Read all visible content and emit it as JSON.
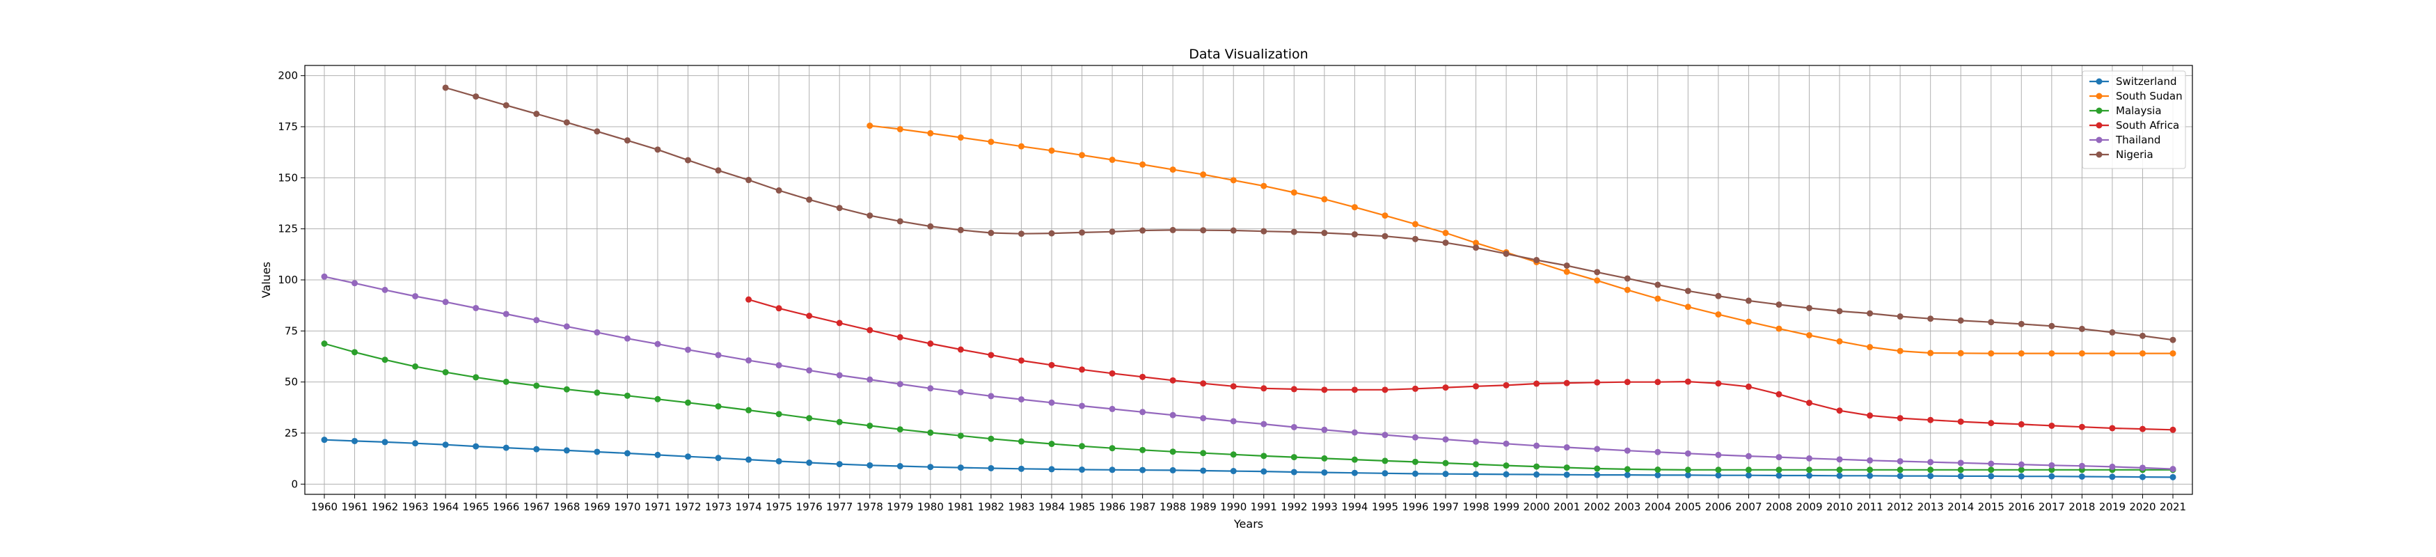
{
  "chart_data": {
    "type": "line",
    "title": "Data Visualization",
    "xlabel": "Years",
    "ylabel": "Values",
    "ylim": [
      -5,
      205
    ],
    "yticks": [
      0,
      25,
      50,
      75,
      100,
      125,
      150,
      175,
      200
    ],
    "grid": true,
    "legend_position": "top-right",
    "x": [
      1960,
      1961,
      1962,
      1963,
      1964,
      1965,
      1966,
      1967,
      1968,
      1969,
      1970,
      1971,
      1972,
      1973,
      1974,
      1975,
      1976,
      1977,
      1978,
      1979,
      1980,
      1981,
      1982,
      1983,
      1984,
      1985,
      1986,
      1987,
      1988,
      1989,
      1990,
      1991,
      1992,
      1993,
      1994,
      1995,
      1996,
      1997,
      1998,
      1999,
      2000,
      2001,
      2002,
      2003,
      2004,
      2005,
      2006,
      2007,
      2008,
      2009,
      2010,
      2011,
      2012,
      2013,
      2014,
      2015,
      2016,
      2017,
      2018,
      2019,
      2020,
      2021
    ],
    "series": [
      {
        "name": "Switzerland",
        "color": "#1f77b4",
        "values": [
          21.7,
          21.1,
          20.6,
          20.0,
          19.3,
          18.5,
          17.8,
          17.1,
          16.5,
          15.8,
          15.1,
          14.3,
          13.5,
          12.8,
          12.0,
          11.2,
          10.5,
          9.8,
          9.2,
          8.8,
          8.4,
          8.1,
          7.8,
          7.5,
          7.3,
          7.1,
          7.0,
          6.9,
          6.8,
          6.6,
          6.4,
          6.2,
          5.9,
          5.7,
          5.5,
          5.3,
          5.1,
          5.0,
          4.9,
          4.8,
          4.7,
          4.6,
          4.5,
          4.5,
          4.4,
          4.4,
          4.3,
          4.3,
          4.2,
          4.2,
          4.1,
          4.1,
          4.0,
          4.0,
          3.9,
          3.9,
          3.8,
          3.8,
          3.7,
          3.6,
          3.5,
          3.4
        ]
      },
      {
        "name": "South Sudan",
        "color": "#ff7f0e",
        "values": [
          null,
          null,
          null,
          null,
          null,
          null,
          null,
          null,
          null,
          null,
          null,
          null,
          null,
          null,
          null,
          null,
          null,
          null,
          175.5,
          173.8,
          171.8,
          169.7,
          167.6,
          165.4,
          163.3,
          161.1,
          158.8,
          156.5,
          154.0,
          151.6,
          148.8,
          146.0,
          142.8,
          139.5,
          135.6,
          131.5,
          127.3,
          123.0,
          118.1,
          113.5,
          108.7,
          104.0,
          99.7,
          95.1,
          90.8,
          86.8,
          83.1,
          79.5,
          76.1,
          72.9,
          69.9,
          67.1,
          65.2,
          64.2,
          64.1,
          64.0,
          64.0,
          64.0,
          64.0,
          64.0,
          64.0,
          64.0
        ]
      },
      {
        "name": "Malaysia",
        "color": "#2ca02c",
        "values": [
          68.8,
          64.6,
          60.9,
          57.6,
          54.8,
          52.3,
          50.1,
          48.2,
          46.4,
          44.8,
          43.3,
          41.6,
          39.9,
          38.1,
          36.2,
          34.3,
          32.3,
          30.4,
          28.6,
          26.8,
          25.2,
          23.7,
          22.2,
          20.9,
          19.7,
          18.6,
          17.6,
          16.7,
          15.9,
          15.2,
          14.5,
          13.8,
          13.2,
          12.6,
          12.0,
          11.4,
          10.9,
          10.3,
          9.7,
          9.1,
          8.6,
          8.1,
          7.6,
          7.3,
          7.1,
          7.0,
          7.0,
          7.0,
          7.0,
          7.0,
          7.0,
          7.0,
          7.0,
          7.0,
          7.0,
          7.0,
          7.0,
          7.0,
          7.0,
          7.0,
          7.0,
          7.0
        ]
      },
      {
        "name": "South Africa",
        "color": "#d62728",
        "values": [
          null,
          null,
          null,
          null,
          null,
          null,
          null,
          null,
          null,
          null,
          null,
          null,
          null,
          null,
          90.4,
          86.1,
          82.4,
          78.9,
          75.4,
          71.9,
          68.8,
          65.9,
          63.2,
          60.5,
          58.3,
          56.1,
          54.2,
          52.5,
          50.8,
          49.3,
          47.9,
          46.9,
          46.5,
          46.2,
          46.2,
          46.2,
          46.7,
          47.3,
          47.9,
          48.4,
          49.2,
          49.5,
          49.8,
          50.0,
          50.0,
          50.2,
          49.3,
          47.7,
          44.0,
          39.8,
          36.0,
          33.6,
          32.3,
          31.4,
          30.6,
          29.9,
          29.3,
          28.6,
          28.0,
          27.4,
          27.0,
          26.6
        ]
      },
      {
        "name": "Thailand",
        "color": "#9467bd",
        "values": [
          101.6,
          98.4,
          95.1,
          92.0,
          89.2,
          86.2,
          83.3,
          80.3,
          77.2,
          74.3,
          71.3,
          68.6,
          65.8,
          63.2,
          60.6,
          58.2,
          55.7,
          53.3,
          51.2,
          49.0,
          46.9,
          45.0,
          43.1,
          41.5,
          39.9,
          38.3,
          36.8,
          35.3,
          33.8,
          32.3,
          30.8,
          29.4,
          27.9,
          26.6,
          25.3,
          24.1,
          22.9,
          21.9,
          20.8,
          19.8,
          18.8,
          18.0,
          17.2,
          16.4,
          15.7,
          15.0,
          14.3,
          13.7,
          13.2,
          12.6,
          12.1,
          11.6,
          11.2,
          10.8,
          10.4,
          10.0,
          9.6,
          9.2,
          8.9,
          8.5,
          8.0,
          7.4
        ]
      },
      {
        "name": "Nigeria",
        "color": "#8c564b",
        "values": [
          null,
          null,
          null,
          null,
          194.1,
          189.8,
          185.5,
          181.3,
          177.1,
          172.7,
          168.3,
          163.8,
          158.6,
          153.6,
          148.9,
          143.8,
          139.3,
          135.2,
          131.5,
          128.7,
          126.2,
          124.4,
          123.0,
          122.6,
          122.8,
          123.2,
          123.6,
          124.2,
          124.4,
          124.3,
          124.2,
          123.8,
          123.5,
          123.0,
          122.3,
          121.4,
          120.0,
          118.2,
          115.8,
          112.8,
          109.7,
          107.0,
          103.8,
          100.7,
          97.6,
          94.6,
          92.1,
          89.8,
          87.9,
          86.2,
          84.7,
          83.6,
          82.1,
          81.0,
          80.1,
          79.3,
          78.4,
          77.4,
          76.0,
          74.3,
          72.6,
          70.6
        ]
      }
    ]
  }
}
